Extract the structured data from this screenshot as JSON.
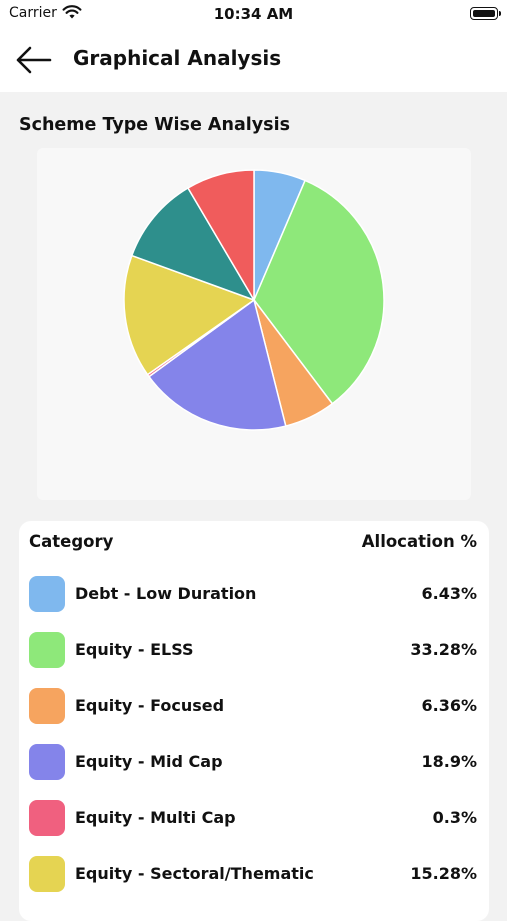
{
  "status": {
    "carrier": "Carrier",
    "time": "10:34 AM"
  },
  "nav": {
    "title": "Graphical Analysis",
    "back_icon": "arrow-left-icon"
  },
  "section_title": "Scheme Type Wise Analysis",
  "table": {
    "header_category": "Category",
    "header_allocation": "Allocation %",
    "rows": [
      {
        "label": "Debt - Low Duration",
        "value": "6.43%",
        "color": "#7fb8ee"
      },
      {
        "label": "Equity - ELSS",
        "value": "33.28%",
        "color": "#8ee87a"
      },
      {
        "label": "Equity - Focused",
        "value": "6.36%",
        "color": "#f6a45f"
      },
      {
        "label": "Equity - Mid Cap",
        "value": "18.9%",
        "color": "#8484ea"
      },
      {
        "label": "Equity - Multi Cap",
        "value": "0.3%",
        "color": "#f0607f"
      },
      {
        "label": "Equity - Sectoral/Thematic",
        "value": "15.28%",
        "color": "#e5d452"
      }
    ]
  },
  "chart_data": {
    "type": "pie",
    "title": "",
    "slices": [
      {
        "label": "Debt - Low Duration",
        "value": 6.43,
        "color": "#7fb8ee"
      },
      {
        "label": "Equity - ELSS",
        "value": 33.28,
        "color": "#8ee87a"
      },
      {
        "label": "Equity - Focused",
        "value": 6.36,
        "color": "#f6a45f"
      },
      {
        "label": "Equity - Mid Cap",
        "value": 18.9,
        "color": "#8484ea"
      },
      {
        "label": "Equity - Multi Cap",
        "value": 0.3,
        "color": "#f0607f"
      },
      {
        "label": "Equity - Sectoral/Thematic",
        "value": 15.28,
        "color": "#e5d452"
      },
      {
        "label": "",
        "value": 10.97,
        "color": "#2e8f8c"
      },
      {
        "label": "",
        "value": 8.48,
        "color": "#f05c5c"
      }
    ]
  }
}
